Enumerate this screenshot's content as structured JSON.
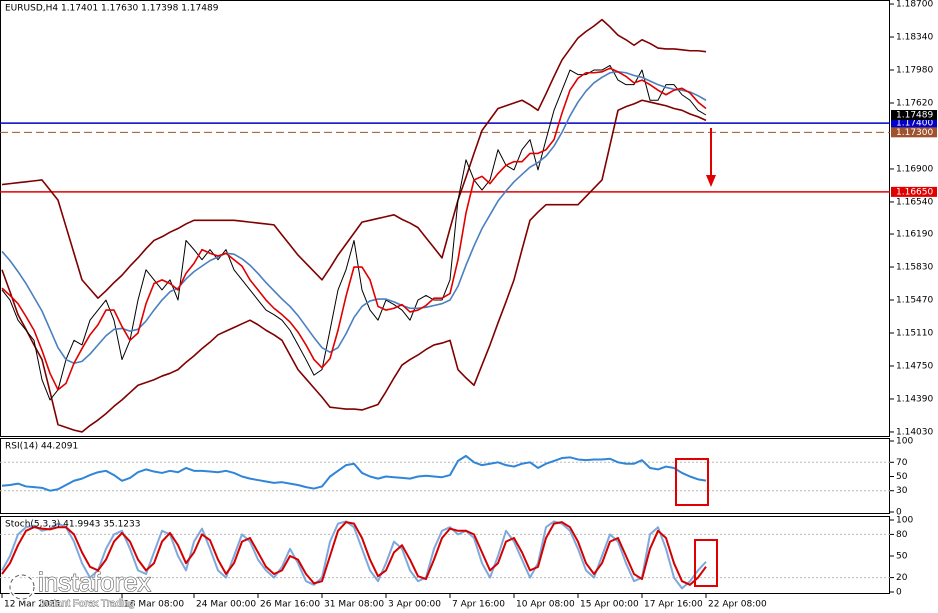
{
  "chart_data": [
    {
      "type": "line",
      "title": "EURUSD,H4  1.17401 1.17630 1.17398 1.17489",
      "categories": [
        "12 Mar 2021",
        null,
        null,
        null,
        null,
        null,
        null,
        null,
        null,
        null,
        null,
        null,
        null,
        null,
        null,
        "18 Mar 08:00",
        null,
        null,
        null,
        null,
        null,
        null,
        null,
        null,
        "24 Mar 00:00",
        null,
        null,
        null,
        null,
        null,
        null,
        null,
        "26 Mar 16:00",
        null,
        null,
        null,
        null,
        null,
        null,
        null,
        "31 Mar 08:00",
        null,
        null,
        null,
        null,
        null,
        null,
        null,
        "3 Apr 00:00",
        null,
        null,
        null,
        null,
        null,
        null,
        null,
        "7 Apr 16:00",
        null,
        null,
        null,
        null,
        null,
        null,
        null,
        "10 Apr 08:00",
        null,
        null,
        null,
        null,
        null,
        null,
        null,
        "15 Apr 00:00",
        null,
        null,
        null,
        null,
        null,
        null,
        null,
        "17 Apr 16:00",
        null,
        null,
        null,
        null,
        null,
        null,
        null,
        "22 Apr 08:00"
      ],
      "ylim": [
        1.13975,
        1.18744
      ],
      "yticks": [
        {
          "value": 1.187,
          "label": "1.18700"
        },
        {
          "value": 1.1834,
          "label": "1.18340"
        },
        {
          "value": 1.1798,
          "label": "1.17980"
        },
        {
          "value": 1.1762,
          "label": "1.17620"
        },
        {
          "value": 1.169,
          "label": "1.16900"
        },
        {
          "value": 1.1654,
          "label": "1.16540"
        },
        {
          "value": 1.1619,
          "label": "1.16190"
        },
        {
          "value": 1.1583,
          "label": "1.15830"
        },
        {
          "value": 1.1547,
          "label": "1.15470"
        },
        {
          "value": 1.1511,
          "label": "1.15110"
        },
        {
          "value": 1.1475,
          "label": "1.14750"
        },
        {
          "value": 1.1439,
          "label": "1.14390"
        },
        {
          "value": 1.1403,
          "label": "1.14030"
        }
      ],
      "series": [
        {
          "color": "#800000",
          "values": [
            1.1673,
            1.1674,
            1.1675,
            1.1676,
            1.1677,
            1.1678,
            1.1667,
            1.1656,
            1.1627,
            1.1598,
            1.1569,
            1.1559,
            1.1549,
            1.1557,
            1.1566,
            1.1574,
            1.1584,
            1.1593,
            1.1603,
            1.1612,
            1.1616,
            1.1621,
            1.1625,
            1.163,
            1.1634,
            1.1634,
            1.1634,
            1.1634,
            1.1634,
            1.1634,
            1.1633,
            1.1632,
            1.1631,
            1.163,
            1.1629,
            1.1618,
            1.1607,
            1.1596,
            1.1587,
            1.1578,
            1.1569,
            1.1582,
            1.1596,
            1.1608,
            1.162,
            1.1632,
            1.1634,
            1.1636,
            1.1638,
            1.164,
            1.1635,
            1.1631,
            1.1626,
            1.1615,
            1.1604,
            1.1593,
            1.1625,
            1.1656,
            1.1681,
            1.1707,
            1.1732,
            1.1744,
            1.1756,
            1.1759,
            1.1762,
            1.1765,
            1.176,
            1.1754,
            1.1772,
            1.1791,
            1.1809,
            1.1821,
            1.1833,
            1.184,
            1.1846,
            1.1853,
            1.1845,
            1.1836,
            1.1831,
            1.1825,
            1.1831,
            1.1827,
            1.1822,
            1.1821,
            1.1821,
            1.182,
            1.1819,
            1.1819,
            1.1818
          ]
        },
        {
          "color": "#800000",
          "values": [
            1.158,
            1.1556,
            1.1531,
            1.1515,
            1.1498,
            1.1482,
            1.1447,
            1.1411,
            1.1408,
            1.1405,
            1.1403,
            1.141,
            1.1416,
            1.1423,
            1.1431,
            1.1438,
            1.1446,
            1.1454,
            1.1457,
            1.146,
            1.1464,
            1.1467,
            1.1471,
            1.1479,
            1.1486,
            1.1494,
            1.1501,
            1.1509,
            1.1513,
            1.1517,
            1.1521,
            1.1525,
            1.152,
            1.1514,
            1.1509,
            1.1503,
            1.1487,
            1.1471,
            1.1461,
            1.1451,
            1.1441,
            1.143,
            1.1429,
            1.1428,
            1.1428,
            1.1427,
            1.143,
            1.1433,
            1.1447,
            1.1462,
            1.1476,
            1.1482,
            1.1487,
            1.1493,
            1.1498,
            1.15,
            1.1503,
            1.1471,
            1.1462,
            1.1454,
            1.1476,
            1.1498,
            1.1522,
            1.1545,
            1.1569,
            1.1602,
            1.1634,
            1.1643,
            1.1651,
            1.1651,
            1.1651,
            1.1651,
            1.1651,
            1.166,
            1.1669,
            1.1678,
            1.1716,
            1.1754,
            1.1758,
            1.1761,
            1.1765,
            1.1763,
            1.1761,
            1.1759,
            1.1756,
            1.1754,
            1.175,
            1.1747,
            1.1743
          ]
        },
        {
          "color": "#000000",
          "values": [
            1.1558,
            1.1547,
            1.1525,
            1.1514,
            1.1503,
            1.146,
            1.1438,
            1.1449,
            1.1482,
            1.1503,
            1.1498,
            1.1525,
            1.1536,
            1.1547,
            1.1525,
            1.1482,
            1.1503,
            1.1547,
            1.158,
            1.1569,
            1.1558,
            1.1569,
            1.1547,
            1.1612,
            1.1602,
            1.1591,
            1.1602,
            1.1591,
            1.1602,
            1.158,
            1.1569,
            1.1558,
            1.1547,
            1.1536,
            1.1531,
            1.1525,
            1.1514,
            1.1498,
            1.1482,
            1.1465,
            1.1471,
            1.1514,
            1.1558,
            1.158,
            1.1612,
            1.1558,
            1.1536,
            1.1525,
            1.1547,
            1.1542,
            1.1536,
            1.1525,
            1.1547,
            1.1552,
            1.1547,
            1.1547,
            1.1569,
            1.1656,
            1.17,
            1.1678,
            1.1667,
            1.1678,
            1.1711,
            1.1694,
            1.1689,
            1.1711,
            1.1722,
            1.1689,
            1.1722,
            1.1754,
            1.1776,
            1.1798,
            1.1793,
            1.1793,
            1.1798,
            1.1798,
            1.1803,
            1.1787,
            1.1782,
            1.1782,
            1.1798,
            1.1765,
            1.1765,
            1.1782,
            1.1782,
            1.1771,
            1.1765,
            1.1754,
            1.17489
          ]
        },
        {
          "color": "#4a7fc1",
          "values": [
            1.16,
            1.159,
            1.1578,
            1.1565,
            1.155,
            1.1535,
            1.1515,
            1.1495,
            1.1482,
            1.1478,
            1.148,
            1.1488,
            1.1498,
            1.1508,
            1.1515,
            1.1516,
            1.1513,
            1.1515,
            1.1524,
            1.1536,
            1.1547,
            1.1556,
            1.156,
            1.157,
            1.1578,
            1.1584,
            1.159,
            1.1594,
            1.1598,
            1.1597,
            1.1592,
            1.1585,
            1.1576,
            1.1566,
            1.1557,
            1.1548,
            1.154,
            1.153,
            1.1518,
            1.1506,
            1.1495,
            1.149,
            1.1495,
            1.151,
            1.1528,
            1.154,
            1.1546,
            1.1548,
            1.1548,
            1.1545,
            1.1541,
            1.1538,
            1.1538,
            1.1539,
            1.1541,
            1.1543,
            1.1547,
            1.1562,
            1.1585,
            1.1606,
            1.1625,
            1.164,
            1.1655,
            1.1666,
            1.1676,
            1.1684,
            1.1692,
            1.1697,
            1.1704,
            1.1715,
            1.173,
            1.1748,
            1.1763,
            1.1775,
            1.1784,
            1.179,
            1.1795,
            1.1796,
            1.1795,
            1.1792,
            1.179,
            1.1786,
            1.1782,
            1.1779,
            1.1777,
            1.1776,
            1.1774,
            1.177,
            1.1765
          ]
        },
        {
          "color": "#e00000",
          "values": [
            1.156,
            1.1552,
            1.1543,
            1.1529,
            1.1514,
            1.1492,
            1.1467,
            1.1449,
            1.1456,
            1.1478,
            1.1494,
            1.1509,
            1.152,
            1.1536,
            1.1536,
            1.1518,
            1.1503,
            1.1511,
            1.1543,
            1.1565,
            1.1569,
            1.1565,
            1.1558,
            1.1576,
            1.1587,
            1.1602,
            1.1598,
            1.1595,
            1.1598,
            1.1591,
            1.1584,
            1.1569,
            1.1558,
            1.1547,
            1.1538,
            1.1531,
            1.1523,
            1.1512,
            1.1498,
            1.1482,
            1.1473,
            1.1483,
            1.1514,
            1.1551,
            1.1583,
            1.1583,
            1.1569,
            1.154,
            1.1536,
            1.1538,
            1.1542,
            1.1534,
            1.1536,
            1.1541,
            1.1549,
            1.1549,
            1.1554,
            1.1591,
            1.1642,
            1.1678,
            1.1682,
            1.1674,
            1.1685,
            1.1694,
            1.1698,
            1.1698,
            1.1707,
            1.1707,
            1.1711,
            1.1722,
            1.1751,
            1.1776,
            1.1789,
            1.1795,
            1.1795,
            1.1796,
            1.18,
            1.1796,
            1.1791,
            1.1784,
            1.1787,
            1.1782,
            1.1776,
            1.1771,
            1.1776,
            1.1778,
            1.1773,
            1.1763,
            1.1756
          ]
        }
      ],
      "levels": [
        {
          "value": 1.174,
          "label": "1.17400",
          "color": "#0000c8",
          "style": "solid"
        },
        {
          "value": 1.173,
          "label": "1.17300",
          "color": "#a0522d",
          "style": "dashed"
        },
        {
          "value": 1.1665,
          "label": "1.16650",
          "color": "#e00000",
          "style": "solid"
        }
      ],
      "price_label": {
        "value": 1.17489,
        "label": "1.17489",
        "color": "#000000"
      }
    },
    {
      "type": "line",
      "title": "RSI(14) 44.2091",
      "ylim": [
        0,
        100
      ],
      "yticks": [
        0,
        30,
        50,
        70,
        100
      ],
      "levels": [
        70,
        30
      ],
      "series": [
        {
          "color": "#2f86d8",
          "values": [
            37,
            38,
            40,
            36,
            35,
            34,
            30,
            32,
            38,
            44,
            47,
            52,
            56,
            58,
            52,
            44,
            48,
            56,
            60,
            57,
            55,
            58,
            56,
            62,
            58,
            58,
            57,
            56,
            58,
            55,
            50,
            47,
            45,
            43,
            41,
            42,
            40,
            38,
            35,
            33,
            36,
            50,
            58,
            66,
            68,
            55,
            50,
            47,
            50,
            49,
            48,
            47,
            50,
            51,
            50,
            49,
            52,
            72,
            79,
            70,
            66,
            68,
            70,
            66,
            64,
            68,
            70,
            62,
            68,
            72,
            76,
            77,
            74,
            73,
            74,
            74,
            75,
            70,
            68,
            68,
            73,
            62,
            60,
            64,
            62,
            55,
            50,
            46,
            44.2091
          ]
        }
      ]
    },
    {
      "type": "line",
      "title": "Stoch(5,3,3) 41.9943 35.1233",
      "ylim": [
        0,
        100
      ],
      "yticks": [
        0,
        20,
        50,
        80,
        100
      ],
      "levels": [
        80,
        20
      ],
      "series": [
        {
          "color": "#7fa8dc",
          "values": [
            30,
            50,
            80,
            90,
            92,
            85,
            88,
            95,
            90,
            70,
            40,
            20,
            30,
            60,
            80,
            85,
            60,
            30,
            25,
            55,
            85,
            80,
            50,
            30,
            70,
            88,
            60,
            30,
            20,
            50,
            80,
            70,
            45,
            30,
            20,
            35,
            60,
            40,
            15,
            10,
            20,
            70,
            95,
            98,
            90,
            60,
            30,
            15,
            40,
            70,
            60,
            30,
            15,
            20,
            60,
            85,
            90,
            80,
            85,
            75,
            40,
            20,
            50,
            85,
            70,
            45,
            20,
            40,
            90,
            98,
            95,
            85,
            60,
            30,
            20,
            50,
            80,
            70,
            40,
            15,
            20,
            80,
            90,
            60,
            20,
            5,
            15,
            30,
            41.9943
          ]
        },
        {
          "color": "#d40000",
          "values": [
            25,
            40,
            65,
            85,
            90,
            88,
            87,
            90,
            90,
            80,
            55,
            35,
            30,
            45,
            70,
            82,
            70,
            45,
            30,
            40,
            70,
            82,
            65,
            40,
            55,
            80,
            72,
            45,
            25,
            40,
            70,
            75,
            55,
            35,
            25,
            30,
            50,
            45,
            25,
            12,
            15,
            50,
            85,
            97,
            95,
            75,
            45,
            22,
            30,
            55,
            65,
            45,
            22,
            18,
            45,
            75,
            88,
            85,
            85,
            80,
            55,
            30,
            40,
            70,
            75,
            55,
            30,
            35,
            75,
            95,
            97,
            90,
            70,
            40,
            25,
            40,
            70,
            75,
            50,
            25,
            18,
            60,
            85,
            75,
            40,
            15,
            10,
            20,
            35.1233
          ]
        }
      ]
    }
  ],
  "watermark": {
    "brand": "instaforex",
    "tagline": "Instant Forex Trading"
  }
}
